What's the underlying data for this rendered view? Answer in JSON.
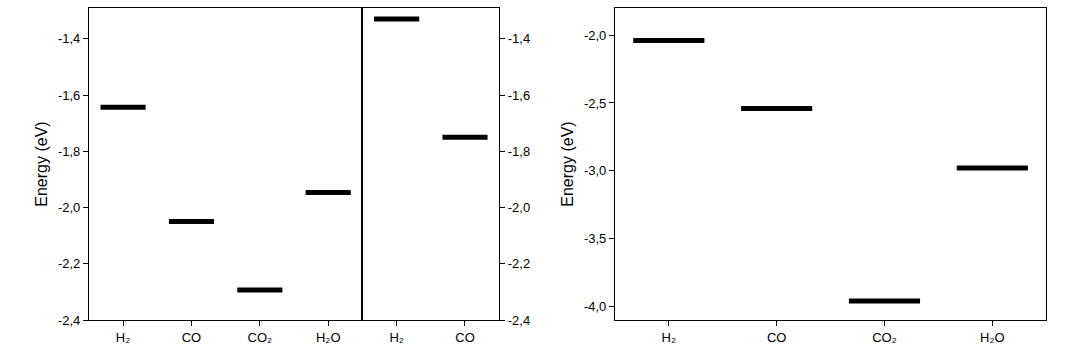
{
  "chart_data": [
    {
      "type": "level",
      "y_label": "Energy (eV)",
      "categories": [
        "H₂",
        "CO",
        "CO₂",
        "H₂O"
      ],
      "values": [
        -1.643,
        -2.05,
        -2.293,
        -1.946
      ],
      "color": "#000000",
      "ylim": [
        -2.4,
        -1.29
      ],
      "yticks": [
        {
          "value": -2.4,
          "label": "-2,4"
        },
        {
          "value": -2.2,
          "label": "-2,2"
        },
        {
          "value": -2.0,
          "label": "-2,0"
        },
        {
          "value": -1.8,
          "label": "-1,8"
        },
        {
          "value": -1.6,
          "label": "-1,6"
        },
        {
          "value": -1.4,
          "label": "-1,4"
        }
      ],
      "grid": false
    },
    {
      "type": "level",
      "categories": [
        "H₂",
        "CO"
      ],
      "values": [
        -1.329,
        -1.75
      ],
      "color": "#000000",
      "ylim": [
        -2.4,
        -1.29
      ],
      "yticks": [
        {
          "value": -2.4,
          "label": "-2,4"
        },
        {
          "value": -2.2,
          "label": "-2,2"
        },
        {
          "value": -2.0,
          "label": "-2,0"
        },
        {
          "value": -1.8,
          "label": "-1,8"
        },
        {
          "value": -1.6,
          "label": "-1,6"
        },
        {
          "value": -1.4,
          "label": "-1,4"
        }
      ],
      "grid": false
    },
    {
      "type": "level",
      "y_label": "Energy (eV)",
      "categories": [
        "H₂",
        "CO",
        "CO₂",
        "H₂O"
      ],
      "values": [
        -2.04,
        -2.54,
        -3.96,
        -2.98
      ],
      "color": "#000000",
      "ylim": [
        -4.1,
        -1.8
      ],
      "yticks": [
        {
          "value": -4.0,
          "label": "-4,0"
        },
        {
          "value": -3.5,
          "label": "-3,5"
        },
        {
          "value": -3.0,
          "label": "-3,0"
        },
        {
          "value": -2.5,
          "label": "-2,5"
        },
        {
          "value": -2.0,
          "label": "-2,0"
        }
      ],
      "grid": false
    }
  ]
}
